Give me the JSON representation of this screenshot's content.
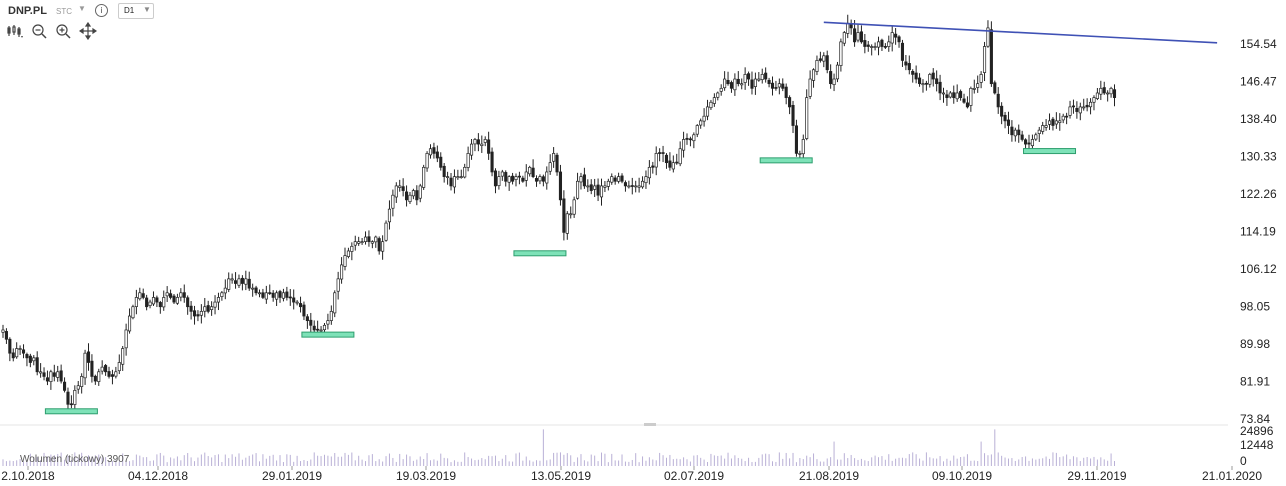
{
  "toolbar": {
    "symbol": "DNP.PL",
    "mode": "STC",
    "timeframe": "D1",
    "icons": [
      "bar-type-icon",
      "zoom-out-icon",
      "zoom-in-icon",
      "crosshair-icon",
      "info-icon"
    ]
  },
  "volume_label": "Wolumen (tickowy) 3907",
  "colors": {
    "trendline": "#3f51b5",
    "support": "#7ee2b8",
    "support_border": "#2e9e6e",
    "volume": "#b9b0d6"
  },
  "chart_data": [
    {
      "type": "candlestick",
      "title": "",
      "xlabel": "",
      "ylabel": "",
      "x_tick_labels": [
        "2.10.2018",
        "04.12.2018",
        "29.01.2019",
        "19.03.2019",
        "13.05.2019",
        "02.07.2019",
        "21.08.2019",
        "09.10.2019",
        "29.11.2019",
        "21.01.2020"
      ],
      "y_tick_labels": [
        "154.54",
        "146.47",
        "138.40",
        "130.33",
        "122.26",
        "114.19",
        "106.12",
        "98.05",
        "89.98",
        "81.91",
        "73.84"
      ],
      "ylim": [
        73.84,
        158.5
      ],
      "grid": false,
      "closes": [
        93,
        91,
        88,
        87,
        89,
        89,
        88,
        87,
        86,
        87,
        84,
        84,
        83,
        82,
        84,
        83,
        84,
        82,
        80,
        77,
        77,
        80,
        81,
        83,
        88,
        86,
        83,
        82,
        84,
        85,
        84,
        83,
        83,
        84,
        86,
        89,
        93,
        96,
        98,
        100,
        101,
        100,
        98,
        99,
        100,
        99,
        98,
        100,
        101,
        100,
        99,
        100,
        101,
        100,
        98,
        97,
        96,
        96,
        97,
        98,
        97,
        98,
        99,
        100,
        101,
        102,
        104,
        104,
        103,
        104,
        103,
        104,
        102,
        102,
        101,
        101,
        100,
        101,
        101,
        100,
        101,
        100,
        101,
        100,
        100,
        99,
        99,
        98,
        96,
        95,
        94,
        93,
        93,
        93,
        94,
        95,
        97,
        101,
        104,
        107,
        109,
        110,
        111,
        112,
        112,
        112,
        113,
        112,
        112,
        113,
        110,
        112,
        116,
        119,
        122,
        124,
        124,
        123,
        121,
        122,
        123,
        121,
        124,
        128,
        131,
        132,
        131,
        130,
        128,
        126,
        126,
        124,
        126,
        126,
        126,
        128,
        131,
        133,
        134,
        133,
        133,
        134,
        131,
        127,
        124,
        126,
        127,
        125,
        126,
        125,
        126,
        126,
        125,
        127,
        128,
        126,
        125,
        126,
        125,
        127,
        129,
        131,
        127,
        121,
        114,
        118,
        118,
        121,
        125,
        126,
        124,
        124,
        123,
        124,
        122,
        124,
        124,
        125,
        126,
        125,
        126,
        125,
        124,
        124,
        124,
        124,
        124,
        125,
        126,
        128,
        128,
        131,
        131,
        131,
        129,
        128,
        129,
        129,
        132,
        134,
        134,
        134,
        135,
        137,
        138,
        139,
        141,
        142,
        143,
        144,
        145,
        147,
        146,
        145,
        147,
        146,
        146,
        148,
        147,
        145,
        147,
        147,
        148,
        147,
        146,
        145,
        145,
        146,
        145,
        143,
        141,
        137,
        131,
        131,
        134,
        143,
        147,
        149,
        151,
        151,
        152,
        149,
        146,
        147,
        150,
        155,
        157,
        159,
        158,
        155,
        157,
        155,
        154,
        154,
        154,
        154,
        155,
        154,
        154,
        155,
        157,
        156,
        155,
        151,
        150,
        149,
        148,
        147,
        146,
        146,
        146,
        148,
        147,
        146,
        144,
        144,
        143,
        144,
        143,
        144,
        143,
        142,
        141,
        145,
        145,
        146,
        148,
        154,
        158,
        146,
        144,
        141,
        139,
        138,
        137,
        135,
        136,
        135,
        134,
        133,
        133,
        134,
        135,
        136,
        137,
        137,
        138,
        137,
        138,
        138,
        139,
        139,
        141,
        141,
        140,
        141,
        141,
        141,
        142,
        143,
        144,
        145,
        144,
        144,
        145,
        143
      ]
    },
    {
      "type": "bar",
      "title": "Wolumen (tickowy) 3907",
      "y_tick_labels": [
        "24896",
        "12448",
        "0"
      ],
      "ylim": [
        0,
        24896
      ]
    }
  ]
}
